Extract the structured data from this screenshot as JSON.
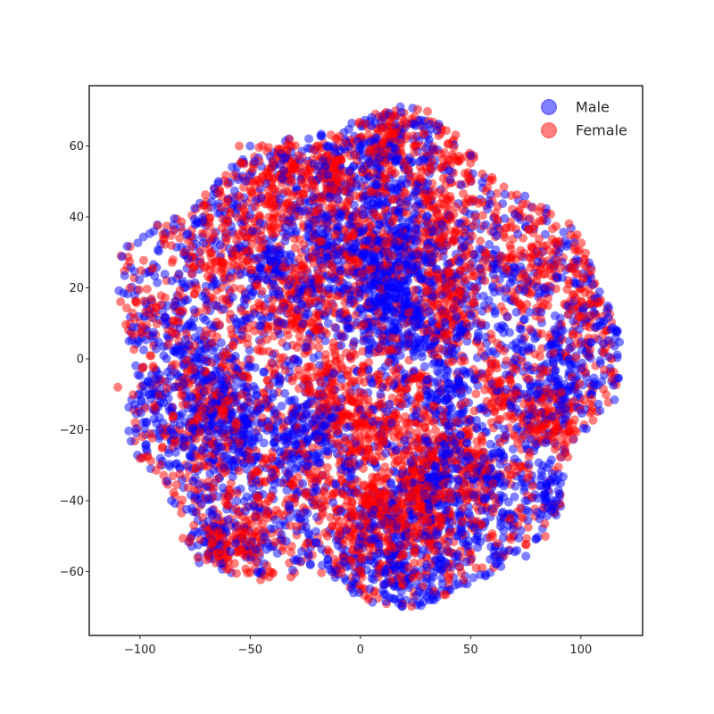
{
  "chart_data": {
    "type": "scatter",
    "title": "",
    "xlabel": "",
    "ylabel": "",
    "xlim": [
      -123,
      128
    ],
    "ylim": [
      -78,
      77
    ],
    "x_ticks": [
      -100,
      -50,
      0,
      50,
      100
    ],
    "y_ticks": [
      -60,
      -40,
      -20,
      0,
      20,
      40,
      60
    ],
    "x_tick_labels": [
      "−100",
      "−50",
      "0",
      "50",
      "100"
    ],
    "y_tick_labels": [
      "−60",
      "−40",
      "−20",
      "0",
      "20",
      "40",
      "60"
    ],
    "grid": false,
    "legend_position": "top-right",
    "approx_points_per_series": 4000,
    "point_alpha": 0.5,
    "series": [
      {
        "name": "Male",
        "color": "#0000ff",
        "sample_points": [
          [
            -105,
            5
          ],
          [
            -95,
            -10
          ],
          [
            -90,
            -30
          ],
          [
            -80,
            20
          ],
          [
            -75,
            -20
          ],
          [
            -60,
            45
          ],
          [
            -50,
            60
          ],
          [
            -45,
            -60
          ],
          [
            -35,
            10
          ],
          [
            -30,
            0
          ],
          [
            -25,
            -20
          ],
          [
            -20,
            30
          ],
          [
            -10,
            45
          ],
          [
            0,
            60
          ],
          [
            5,
            68
          ],
          [
            10,
            -60
          ],
          [
            15,
            20
          ],
          [
            20,
            -35
          ],
          [
            30,
            40
          ],
          [
            35,
            -10
          ],
          [
            40,
            -65
          ],
          [
            50,
            50
          ],
          [
            55,
            -30
          ],
          [
            60,
            20
          ],
          [
            70,
            -45
          ],
          [
            80,
            -10
          ],
          [
            90,
            30
          ],
          [
            95,
            0
          ],
          [
            105,
            -10
          ],
          [
            110,
            10
          ]
        ]
      },
      {
        "name": "Female",
        "color": "#ff0000",
        "sample_points": [
          [
            -110,
            -8
          ],
          [
            -100,
            10
          ],
          [
            -95,
            25
          ],
          [
            -85,
            -25
          ],
          [
            -80,
            30
          ],
          [
            -70,
            15
          ],
          [
            -65,
            -10
          ],
          [
            -55,
            60
          ],
          [
            -50,
            25
          ],
          [
            -40,
            35
          ],
          [
            -35,
            -35
          ],
          [
            -25,
            55
          ],
          [
            -15,
            -50
          ],
          [
            -5,
            40
          ],
          [
            0,
            -60
          ],
          [
            10,
            5
          ],
          [
            15,
            45
          ],
          [
            20,
            -20
          ],
          [
            25,
            60
          ],
          [
            30,
            -5
          ],
          [
            40,
            -50
          ],
          [
            45,
            35
          ],
          [
            55,
            10
          ],
          [
            60,
            -50
          ],
          [
            65,
            35
          ],
          [
            75,
            -30
          ],
          [
            85,
            15
          ],
          [
            90,
            -20
          ],
          [
            100,
            20
          ],
          [
            112,
            8
          ]
        ]
      }
    ]
  }
}
